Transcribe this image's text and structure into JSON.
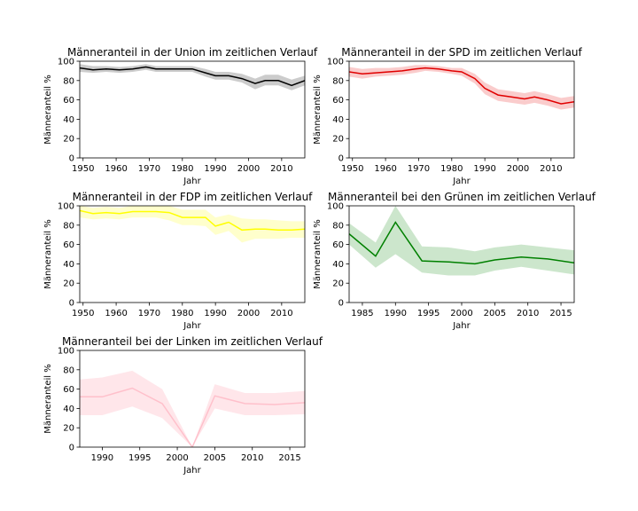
{
  "chart_data": [
    {
      "type": "line",
      "title": "Männeranteil in der Union im zeitlichen Verlauf",
      "xlabel": "Jahr",
      "ylabel": "Männeranteil %",
      "xlim": [
        1949,
        2017
      ],
      "ylim": [
        0,
        100
      ],
      "xticks": [
        1950,
        1960,
        1970,
        1980,
        1990,
        2000,
        2010
      ],
      "yticks": [
        0,
        20,
        40,
        60,
        80,
        100
      ],
      "color": "#000000",
      "band_color": "#808080",
      "series": [
        {
          "x": [
            1949,
            1953,
            1957,
            1961,
            1965,
            1969,
            1972,
            1976,
            1980,
            1983,
            1987,
            1990,
            1994,
            1998,
            2002,
            2005,
            2009,
            2013,
            2017
          ],
          "y": [
            93,
            91,
            92,
            91,
            92,
            94,
            92,
            92,
            92,
            92,
            88,
            85,
            85,
            82,
            77,
            80,
            80,
            75,
            80
          ],
          "lower": [
            89,
            88,
            89,
            88,
            89,
            91,
            89,
            89,
            89,
            89,
            84,
            81,
            81,
            78,
            71,
            75,
            75,
            70,
            75
          ],
          "upper": [
            97,
            95,
            95,
            94,
            95,
            97,
            95,
            95,
            95,
            95,
            92,
            89,
            89,
            87,
            82,
            86,
            86,
            81,
            85
          ]
        }
      ]
    },
    {
      "type": "line",
      "title": "Männeranteil in der SPD im zeitlichen Verlauf",
      "xlabel": "Jahr",
      "ylabel": "Männeranteil %",
      "xlim": [
        1949,
        2017
      ],
      "ylim": [
        0,
        100
      ],
      "xticks": [
        1950,
        1960,
        1970,
        1980,
        1990,
        2000,
        2010
      ],
      "yticks": [
        0,
        20,
        40,
        60,
        80,
        100
      ],
      "color": "#e00000",
      "band_color": "#f28080",
      "series": [
        {
          "x": [
            1949,
            1953,
            1957,
            1961,
            1965,
            1969,
            1972,
            1976,
            1980,
            1983,
            1987,
            1990,
            1994,
            1998,
            2002,
            2005,
            2009,
            2013,
            2017
          ],
          "y": [
            89,
            87,
            88,
            89,
            90,
            92,
            93,
            92,
            90,
            89,
            82,
            72,
            65,
            63,
            61,
            63,
            60,
            56,
            58
          ],
          "lower": [
            84,
            82,
            84,
            85,
            86,
            88,
            90,
            89,
            87,
            85,
            77,
            66,
            59,
            57,
            55,
            57,
            54,
            50,
            52
          ],
          "upper": [
            94,
            92,
            93,
            93,
            94,
            96,
            96,
            95,
            93,
            93,
            87,
            78,
            71,
            69,
            67,
            69,
            66,
            62,
            64
          ]
        }
      ]
    },
    {
      "type": "line",
      "title": "Männeranteil in der FDP im zeitlichen Verlauf",
      "xlabel": "Jahr",
      "ylabel": "Männeranteil %",
      "xlim": [
        1949,
        2017
      ],
      "ylim": [
        0,
        100
      ],
      "xticks": [
        1950,
        1960,
        1970,
        1980,
        1990,
        2000,
        2010
      ],
      "yticks": [
        0,
        20,
        40,
        60,
        80,
        100
      ],
      "color": "#ffff00",
      "band_color": "#ffff80",
      "series": [
        {
          "x": [
            1949,
            1953,
            1957,
            1961,
            1965,
            1969,
            1972,
            1976,
            1980,
            1983,
            1987,
            1990,
            1994,
            1998,
            2002,
            2005,
            2009,
            2013,
            2017
          ],
          "y": [
            95,
            92,
            93,
            92,
            94,
            94,
            94,
            93,
            88,
            88,
            88,
            79,
            83,
            75,
            76,
            76,
            75,
            75,
            76
          ],
          "lower": [
            88,
            86,
            87,
            86,
            88,
            88,
            88,
            85,
            80,
            80,
            79,
            70,
            74,
            62,
            66,
            66,
            66,
            67,
            67
          ],
          "upper": [
            100,
            98,
            99,
            98,
            100,
            100,
            100,
            100,
            96,
            96,
            96,
            88,
            91,
            87,
            86,
            86,
            85,
            84,
            84
          ]
        }
      ]
    },
    {
      "type": "line",
      "title": "Männeranteil bei den Grünen im zeitlichen Verlauf",
      "xlabel": "Jahr",
      "ylabel": "Männeranteil %",
      "xlim": [
        1983,
        2017
      ],
      "ylim": [
        0,
        100
      ],
      "xticks": [
        1985,
        1990,
        1995,
        2000,
        2005,
        2010,
        2015
      ],
      "yticks": [
        0,
        20,
        40,
        60,
        80,
        100
      ],
      "color": "#008000",
      "band_color": "#80c080",
      "series": [
        {
          "x": [
            1983,
            1987,
            1990,
            1994,
            1998,
            2002,
            2005,
            2009,
            2013,
            2017
          ],
          "y": [
            71,
            48,
            83,
            43,
            42,
            40,
            44,
            47,
            45,
            41
          ],
          "lower": [
            60,
            36,
            50,
            31,
            28,
            28,
            33,
            37,
            33,
            29
          ],
          "upper": [
            82,
            62,
            100,
            58,
            57,
            53,
            57,
            60,
            57,
            54
          ]
        }
      ]
    },
    {
      "type": "line",
      "title": "Männeranteil bei der Linken im zeitlichen Verlauf",
      "xlabel": "Jahr",
      "ylabel": "Männeranteil %",
      "xlim": [
        1987,
        2017
      ],
      "ylim": [
        0,
        100
      ],
      "xticks": [
        1990,
        1995,
        2000,
        2005,
        2010,
        2015
      ],
      "yticks": [
        0,
        20,
        40,
        60,
        80,
        100
      ],
      "color": "#ffc0cb",
      "band_color": "#ffc0cb",
      "series": [
        {
          "x": [
            1987,
            1990,
            1994,
            1998,
            2002,
            2005,
            2009,
            2013,
            2017
          ],
          "y": [
            52,
            52,
            61,
            45,
            0,
            53,
            45,
            44,
            46
          ],
          "lower": [
            33,
            33,
            42,
            30,
            0,
            40,
            33,
            33,
            34
          ],
          "upper": [
            70,
            72,
            79,
            60,
            0,
            65,
            56,
            56,
            58
          ]
        }
      ]
    }
  ]
}
